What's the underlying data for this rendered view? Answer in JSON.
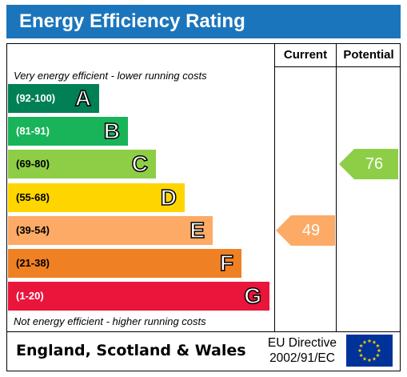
{
  "title": "Energy Efficiency Rating",
  "columns": {
    "current": "Current",
    "potential": "Potential"
  },
  "captions": {
    "top": "Very energy efficient - lower running costs",
    "bottom": "Not energy efficient - higher running costs"
  },
  "colors": {
    "title_bar": "#1b75bc",
    "A": "#008054",
    "B": "#19b459",
    "C": "#8dce46",
    "D": "#ffd500",
    "E": "#fcaa65",
    "F": "#ef8023",
    "G": "#e9153b"
  },
  "chart_data": {
    "type": "bar",
    "categories": [
      "A",
      "B",
      "C",
      "D",
      "E",
      "F",
      "G"
    ],
    "bands": [
      {
        "letter": "A",
        "range": "(92-100)",
        "min": 92,
        "max": 100,
        "range_color": "#ffffff"
      },
      {
        "letter": "B",
        "range": "(81-91)",
        "min": 81,
        "max": 91,
        "range_color": "#ffffff"
      },
      {
        "letter": "C",
        "range": "(69-80)",
        "min": 69,
        "max": 80,
        "range_color": "#000000"
      },
      {
        "letter": "D",
        "range": "(55-68)",
        "min": 55,
        "max": 68,
        "range_color": "#000000"
      },
      {
        "letter": "E",
        "range": "(39-54)",
        "min": 39,
        "max": 54,
        "range_color": "#000000"
      },
      {
        "letter": "F",
        "range": "(21-38)",
        "min": 21,
        "max": 38,
        "range_color": "#000000"
      },
      {
        "letter": "G",
        "range": "(1-20)",
        "min": 1,
        "max": 20,
        "range_color": "#ffffff"
      }
    ],
    "current": {
      "value": 49,
      "label": "49",
      "band": "E"
    },
    "potential": {
      "value": 76,
      "label": "76",
      "band": "C"
    }
  },
  "footer": {
    "region": "England, Scotland & Wales",
    "directive_line1": "EU Directive",
    "directive_line2": "2002/91/EC",
    "flag_icon": "eu-flag-icon"
  }
}
